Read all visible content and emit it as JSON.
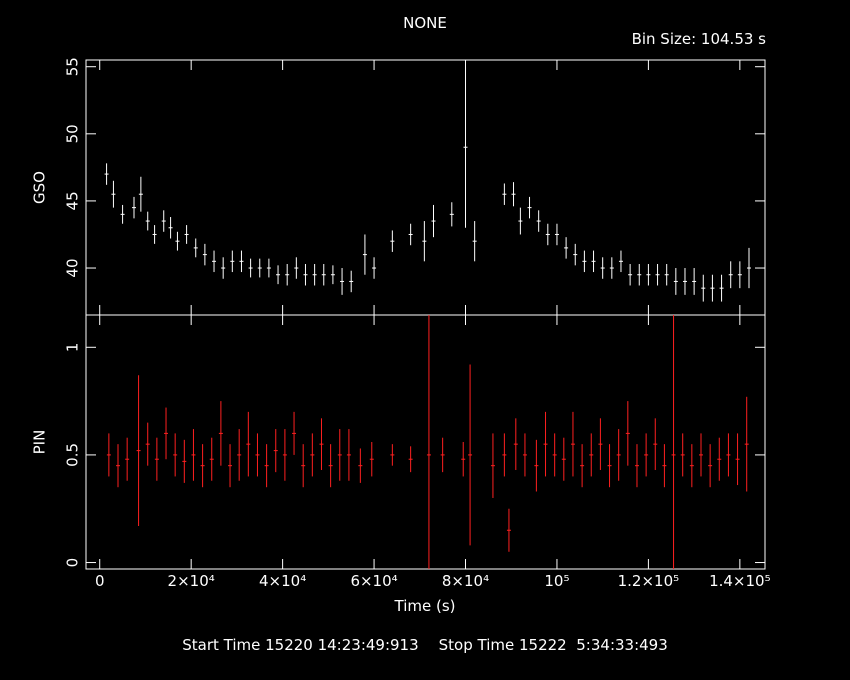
{
  "header": {
    "title": "NONE",
    "bin_size": "Bin Size: 104.53 s"
  },
  "footer": {
    "start_time": "Start Time 15220 14:23:49:913",
    "stop_time": "Stop Time 15222  5:34:33:493"
  },
  "colors": {
    "gso": "#ffffff",
    "pin": "#ff2020",
    "axes": "#ffffff",
    "background": "#000000"
  },
  "chart_data": [
    {
      "type": "line",
      "ylabel": "GSO",
      "xlim": [
        -3000,
        145500
      ],
      "ylim": [
        36.5,
        55.5
      ],
      "yticks": [
        40,
        45,
        50,
        55
      ],
      "yticklabels": [
        "40",
        "45",
        "50",
        "55"
      ],
      "series": [
        {
          "style": "errorbar",
          "x": [
            1500,
            3000,
            5000,
            7500,
            9000,
            10500,
            12000,
            14000,
            15500,
            17000,
            19000,
            21000,
            23000,
            25000,
            27000,
            29000,
            31000,
            33000,
            35000,
            37000,
            39000,
            41000,
            43000,
            45000,
            47000,
            49000,
            51000,
            53000,
            55000,
            58000,
            60000,
            64000,
            68000,
            71000,
            73000,
            77000,
            80000,
            82000,
            88500,
            90500,
            92000,
            94000,
            96000,
            98000,
            100000,
            102000,
            104000,
            106000,
            108000,
            110000,
            112000,
            114000,
            116000,
            118000,
            120000,
            122000,
            124000,
            126000,
            128000,
            130000,
            132000,
            134000,
            136000,
            138000,
            140000,
            142000
          ],
          "y": [
            47,
            45.5,
            44,
            44.5,
            45.5,
            43.5,
            42.5,
            43.5,
            43,
            42,
            42.5,
            41.5,
            41,
            40.5,
            40,
            40.5,
            40.5,
            40,
            40,
            40,
            39.5,
            39.5,
            40,
            39.5,
            39.5,
            39.5,
            39.5,
            39,
            39,
            41,
            40,
            42,
            42.5,
            42,
            43.5,
            44,
            49,
            42,
            45.5,
            45.5,
            43.5,
            44.5,
            43.5,
            42.5,
            42.5,
            41.5,
            41,
            40.5,
            40.5,
            40,
            40,
            40.5,
            39.5,
            39.5,
            39.5,
            39.5,
            39.5,
            39,
            39,
            39,
            38.5,
            38.5,
            38.5,
            39.5,
            39.5,
            40
          ],
          "err": [
            0.8,
            1,
            0.7,
            0.8,
            1.3,
            0.7,
            0.7,
            0.8,
            0.8,
            0.7,
            0.7,
            0.7,
            0.8,
            0.8,
            0.8,
            0.8,
            0.8,
            0.7,
            0.7,
            0.7,
            0.7,
            0.8,
            0.8,
            0.8,
            0.8,
            0.8,
            0.7,
            1,
            0.8,
            1.5,
            0.8,
            0.8,
            0.8,
            1.5,
            1.2,
            0.9,
            6,
            1.5,
            0.8,
            0.9,
            1,
            0.8,
            0.8,
            0.8,
            0.8,
            0.8,
            0.8,
            0.8,
            0.8,
            0.8,
            0.8,
            0.8,
            0.8,
            0.8,
            0.8,
            0.8,
            0.8,
            1,
            1,
            1,
            1,
            1,
            1,
            1,
            1,
            1.5
          ]
        }
      ]
    },
    {
      "type": "line",
      "ylabel": "PIN",
      "xlabel": "Time (s)",
      "xlim": [
        -3000,
        145500
      ],
      "ylim": [
        -0.03,
        1.15
      ],
      "yticks": [
        0,
        0.5,
        1
      ],
      "yticklabels": [
        "0",
        "0.5",
        "1"
      ],
      "xticks": [
        0,
        20000,
        40000,
        60000,
        80000,
        100000,
        120000,
        140000
      ],
      "xticklabels": [
        "0",
        "2×10⁴",
        "4×10⁴",
        "6×10⁴",
        "8×10⁴",
        "10⁵",
        "1.2×10⁵",
        "1.4×10⁵"
      ],
      "series": [
        {
          "style": "errorbar",
          "x": [
            2000,
            4000,
            6000,
            8500,
            10500,
            12500,
            14500,
            16500,
            18500,
            20500,
            22500,
            24500,
            26500,
            28500,
            30500,
            32500,
            34500,
            36500,
            38500,
            40500,
            42500,
            44500,
            46500,
            48500,
            50500,
            52500,
            54500,
            57000,
            59500,
            64000,
            68000,
            72000,
            75000,
            79500,
            81000,
            86000,
            88500,
            89500,
            91000,
            93000,
            95500,
            97500,
            99500,
            101500,
            103500,
            105500,
            107500,
            109500,
            111500,
            113500,
            115500,
            117500,
            119500,
            121500,
            123500,
            125500,
            127500,
            129500,
            131500,
            133500,
            135500,
            137500,
            139500,
            141500
          ],
          "y": [
            0.5,
            0.45,
            0.48,
            0.52,
            0.55,
            0.48,
            0.6,
            0.5,
            0.47,
            0.5,
            0.45,
            0.48,
            0.6,
            0.45,
            0.5,
            0.55,
            0.5,
            0.45,
            0.52,
            0.5,
            0.6,
            0.45,
            0.5,
            0.55,
            0.45,
            0.5,
            0.5,
            0.45,
            0.48,
            0.5,
            0.48,
            0.5,
            0.5,
            0.48,
            0.5,
            0.45,
            0.5,
            0.15,
            0.55,
            0.5,
            0.45,
            0.55,
            0.5,
            0.48,
            0.55,
            0.45,
            0.5,
            0.55,
            0.45,
            0.5,
            0.6,
            0.45,
            0.5,
            0.55,
            0.45,
            0.5,
            0.5,
            0.45,
            0.5,
            0.45,
            0.48,
            0.5,
            0.48,
            0.55
          ],
          "err": [
            0.1,
            0.1,
            0.1,
            0.35,
            0.1,
            0.1,
            0.12,
            0.1,
            0.1,
            0.12,
            0.1,
            0.1,
            0.15,
            0.1,
            0.12,
            0.15,
            0.1,
            0.1,
            0.1,
            0.12,
            0.1,
            0.1,
            0.1,
            0.12,
            0.1,
            0.12,
            0.12,
            0.08,
            0.08,
            0.05,
            0.06,
            0.65,
            0.08,
            0.08,
            0.42,
            0.15,
            0.1,
            0.1,
            0.12,
            0.1,
            0.12,
            0.15,
            0.1,
            0.1,
            0.15,
            0.1,
            0.1,
            0.12,
            0.1,
            0.12,
            0.15,
            0.1,
            0.1,
            0.12,
            0.1,
            0.65,
            0.1,
            0.1,
            0.1,
            0.1,
            0.1,
            0.1,
            0.12,
            0.22
          ]
        }
      ]
    }
  ]
}
